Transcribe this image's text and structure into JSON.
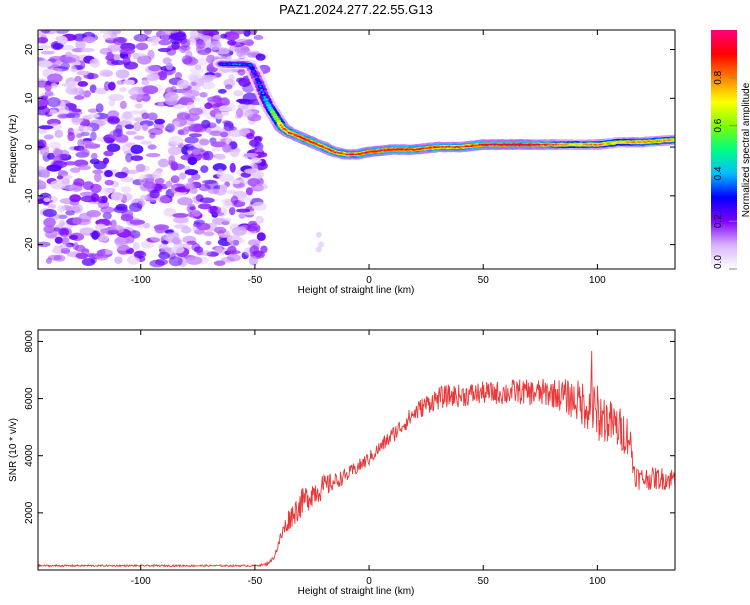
{
  "page": {
    "title": "PAZ1.2024.277.22.55.G13"
  },
  "chart_data": [
    {
      "type": "heatmap",
      "xlabel": "Height of straight line (km)",
      "ylabel": "Frequency (Hz)",
      "xlim": [
        -145,
        134
      ],
      "ylim": [
        -25,
        24
      ],
      "xticks": [
        -100,
        -50,
        0,
        50,
        100
      ],
      "yticks": [
        20,
        10,
        0,
        -10,
        -20
      ],
      "colorbar": {
        "label": "Normalized spectral amplitude",
        "range": [
          0,
          1
        ],
        "ticks": [
          "0.0",
          "0.2",
          "0.4",
          "0.6",
          "0.8"
        ],
        "colors": [
          "#ffffff",
          "#d9b3ff",
          "#8000ff",
          "#0000ff",
          "#00c0ff",
          "#00ff80",
          "#80ff00",
          "#ffff00",
          "#ff8000",
          "#ff0000",
          "#ff0080"
        ]
      },
      "noise_region": {
        "x_range": [
          -145,
          -46
        ],
        "f_range": [
          -24,
          24
        ],
        "amplitude": [
          0.05,
          0.25
        ]
      },
      "ridge": {
        "description_free": true,
        "x": [
          -65,
          -60,
          -55,
          -52,
          -50,
          -48,
          -46,
          -44,
          -42,
          -40,
          -38,
          -35,
          -30,
          -25,
          -20,
          -15,
          -10,
          -5,
          0,
          10,
          20,
          30,
          40,
          50,
          60,
          70,
          80,
          90,
          100,
          110,
          120,
          134
        ],
        "f": [
          17,
          17,
          17,
          16.8,
          15,
          13,
          10.5,
          8.5,
          7,
          5.5,
          4,
          3,
          2,
          1,
          0,
          -1,
          -1.5,
          -1.5,
          -1,
          -0.5,
          -0.5,
          0,
          0,
          0.5,
          0.5,
          0.5,
          0.5,
          0.5,
          0.5,
          1,
          1,
          1.5
        ],
        "amplitude": [
          0.3,
          0.35,
          0.35,
          0.3,
          0.3,
          0.35,
          0.4,
          0.5,
          0.6,
          0.7,
          0.8,
          0.85,
          0.9,
          0.9,
          0.85,
          0.85,
          0.85,
          0.85,
          0.9,
          0.9,
          0.9,
          0.85,
          0.85,
          0.9,
          0.95,
          0.95,
          0.85,
          0.7,
          0.8,
          0.7,
          0.8,
          0.75
        ]
      }
    },
    {
      "type": "line",
      "xlabel": "Height of straight line (km)",
      "ylabel": "SNR (10 * v/v)",
      "xlim": [
        -145,
        134
      ],
      "ylim": [
        0,
        8400
      ],
      "xticks": [
        -100,
        -50,
        0,
        50,
        100
      ],
      "yticks": [
        2000,
        4000,
        6000,
        8000
      ],
      "color": "#e8393a",
      "series": [
        {
          "x": [
            -145,
            -130,
            -110,
            -90,
            -70,
            -60,
            -50,
            -45,
            -42,
            -40,
            -38,
            -35,
            -30,
            -25,
            -20,
            -15,
            -10,
            -5,
            0,
            5,
            10,
            15,
            20,
            25,
            30,
            35,
            40,
            45,
            50,
            55,
            60,
            65,
            70,
            75,
            80,
            85,
            90,
            95,
            100,
            105,
            110,
            114,
            116,
            118,
            120,
            125,
            130,
            134
          ],
          "values": [
            150,
            150,
            150,
            150,
            150,
            150,
            150,
            200,
            400,
            800,
            1300,
            1800,
            2300,
            2700,
            2900,
            3100,
            3300,
            3600,
            3900,
            4300,
            4700,
            5100,
            5500,
            5800,
            6000,
            6100,
            6100,
            6150,
            6200,
            6200,
            6200,
            6250,
            6200,
            6200,
            6200,
            6100,
            5950,
            5800,
            5500,
            5200,
            4900,
            4700,
            3500,
            3200,
            3200,
            3200,
            3200,
            3200
          ],
          "noise_amplitude": [
            30,
            30,
            30,
            30,
            30,
            30,
            30,
            40,
            80,
            150,
            300,
            400,
            500,
            500,
            450,
            300,
            250,
            250,
            250,
            250,
            300,
            300,
            350,
            350,
            400,
            400,
            400,
            400,
            400,
            400,
            450,
            450,
            450,
            500,
            500,
            600,
            700,
            900,
            1000,
            800,
            800,
            700,
            500,
            400,
            400,
            400,
            400,
            400
          ]
        }
      ]
    }
  ]
}
